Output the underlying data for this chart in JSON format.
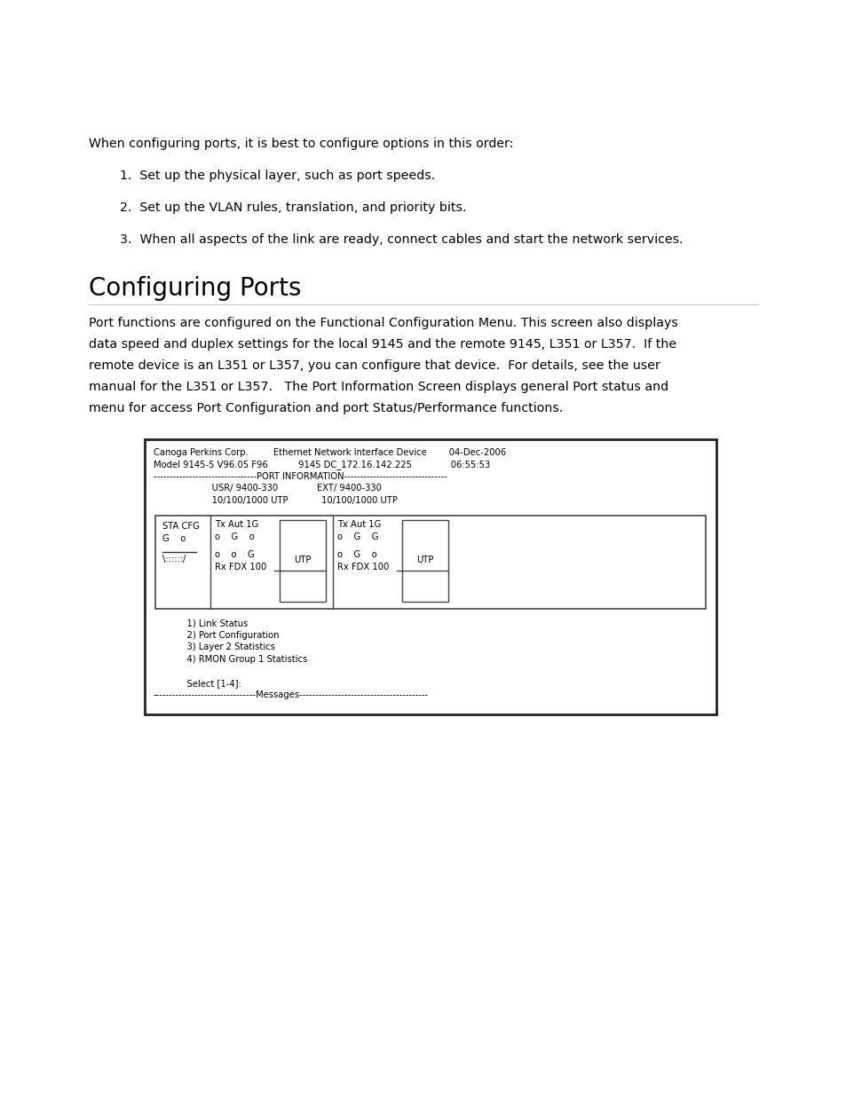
{
  "bg_color": "#ffffff",
  "text_color": "#000000",
  "intro_text": "When configuring ports, it is best to configure options in this order:",
  "list_items": [
    "Set up the physical layer, such as port speeds.",
    "Set up the VLAN rules, translation, and priority bits.",
    "When all aspects of the link are ready, connect cables and start the network services."
  ],
  "section_title": "Configuring Ports",
  "body_lines": [
    "Port functions are configured on the Functional Configuration Menu. This screen also displays",
    "data speed and duplex settings for the local 9145 and the remote 9145, L351 or L357.  If the",
    "remote device is an L351 or L357, you can configure that device.  For details, see the user",
    "manual for the L351 or L357.   The Port Information Screen displays general Port status and",
    "menu for access Port Configuration and port Status/Performance functions."
  ],
  "term_header": [
    "Canoga Perkins Corp.         Ethernet Network Interface Device        04-Dec-2006",
    "Model 9145-5 V96.05 F96           9145 DC_172.16.142.225              06:55:53",
    "--------------------------------PORT INFORMATION--------------------------------",
    "                     USR/ 9400-330              EXT/ 9400-330",
    "                     10/100/1000 UTP            10/100/1000 UTP"
  ],
  "inner_left_lines": [
    "STA CFG",
    "G    o"
  ],
  "inner_slash": "\\::::::/",
  "left_port_lines": [
    "Tx Aut 1G",
    "o    G    o",
    "o    o    G",
    "Rx FDX 100"
  ],
  "right_port_lines": [
    "Tx Aut 1G",
    "o    G    G",
    "o    G    o",
    "Rx FDX 100"
  ],
  "utp_label": "UTP",
  "menu_lines": [
    "            1) Link Status",
    "            2) Port Configuration",
    "            3) Layer 2 Statistics",
    "            4) RMON Group 1 Statistics",
    "",
    "            Select [1-4]:",
    "--------------------------------Messages----------------------------------------"
  ]
}
